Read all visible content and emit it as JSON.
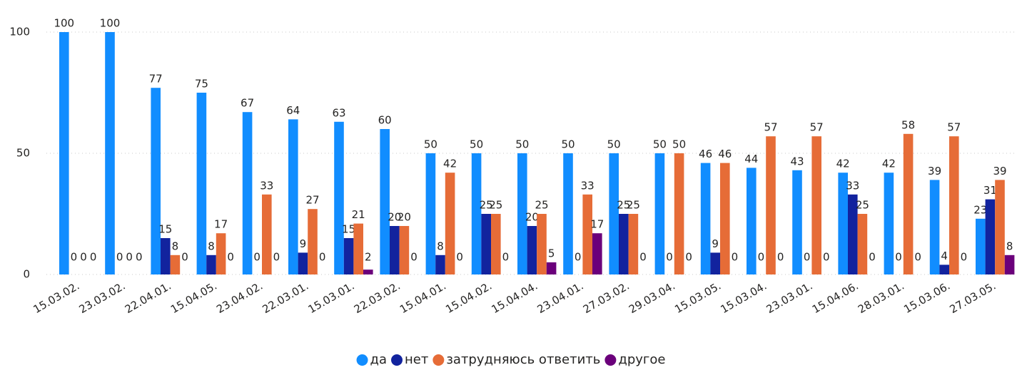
{
  "chart_data": {
    "type": "bar",
    "categories": [
      "15.03.02.",
      "23.03.02.",
      "22.04.01.",
      "15.04.05.",
      "23.04.02.",
      "22.03.01.",
      "15.03.01.",
      "22.03.02.",
      "15.04.01.",
      "15.04.02.",
      "15.04.04.",
      "23.04.01.",
      "27.03.02.",
      "29.03.04.",
      "15.03.05.",
      "15.03.04.",
      "23.03.01.",
      "15.04.06.",
      "28.03.01.",
      "15.03.06.",
      "27.03.05."
    ],
    "series": [
      {
        "name": "да",
        "color": "#118dff",
        "values": [
          100,
          100,
          77,
          75,
          67,
          64,
          63,
          60,
          50,
          50,
          50,
          50,
          50,
          50,
          46,
          44,
          43,
          42,
          42,
          39,
          23
        ]
      },
      {
        "name": "нет",
        "color": "#12239e",
        "values": [
          0,
          0,
          15,
          8,
          0,
          9,
          15,
          20,
          8,
          25,
          20,
          0,
          25,
          0,
          9,
          0,
          0,
          33,
          0,
          4,
          31
        ]
      },
      {
        "name": "затрудняюсь ответить",
        "color": "#e66c37",
        "values": [
          0,
          0,
          8,
          17,
          33,
          27,
          21,
          20,
          42,
          25,
          25,
          33,
          25,
          50,
          46,
          57,
          57,
          25,
          58,
          57,
          39
        ]
      },
      {
        "name": "другое",
        "color": "#6b007b",
        "values": [
          0,
          0,
          0,
          0,
          0,
          0,
          2,
          0,
          0,
          0,
          5,
          17,
          0,
          0,
          0,
          0,
          0,
          0,
          0,
          0,
          8
        ]
      }
    ],
    "ylim": [
      0,
      100
    ],
    "yticks": [
      0,
      50,
      100
    ],
    "grid": true,
    "legend": "bottom"
  }
}
